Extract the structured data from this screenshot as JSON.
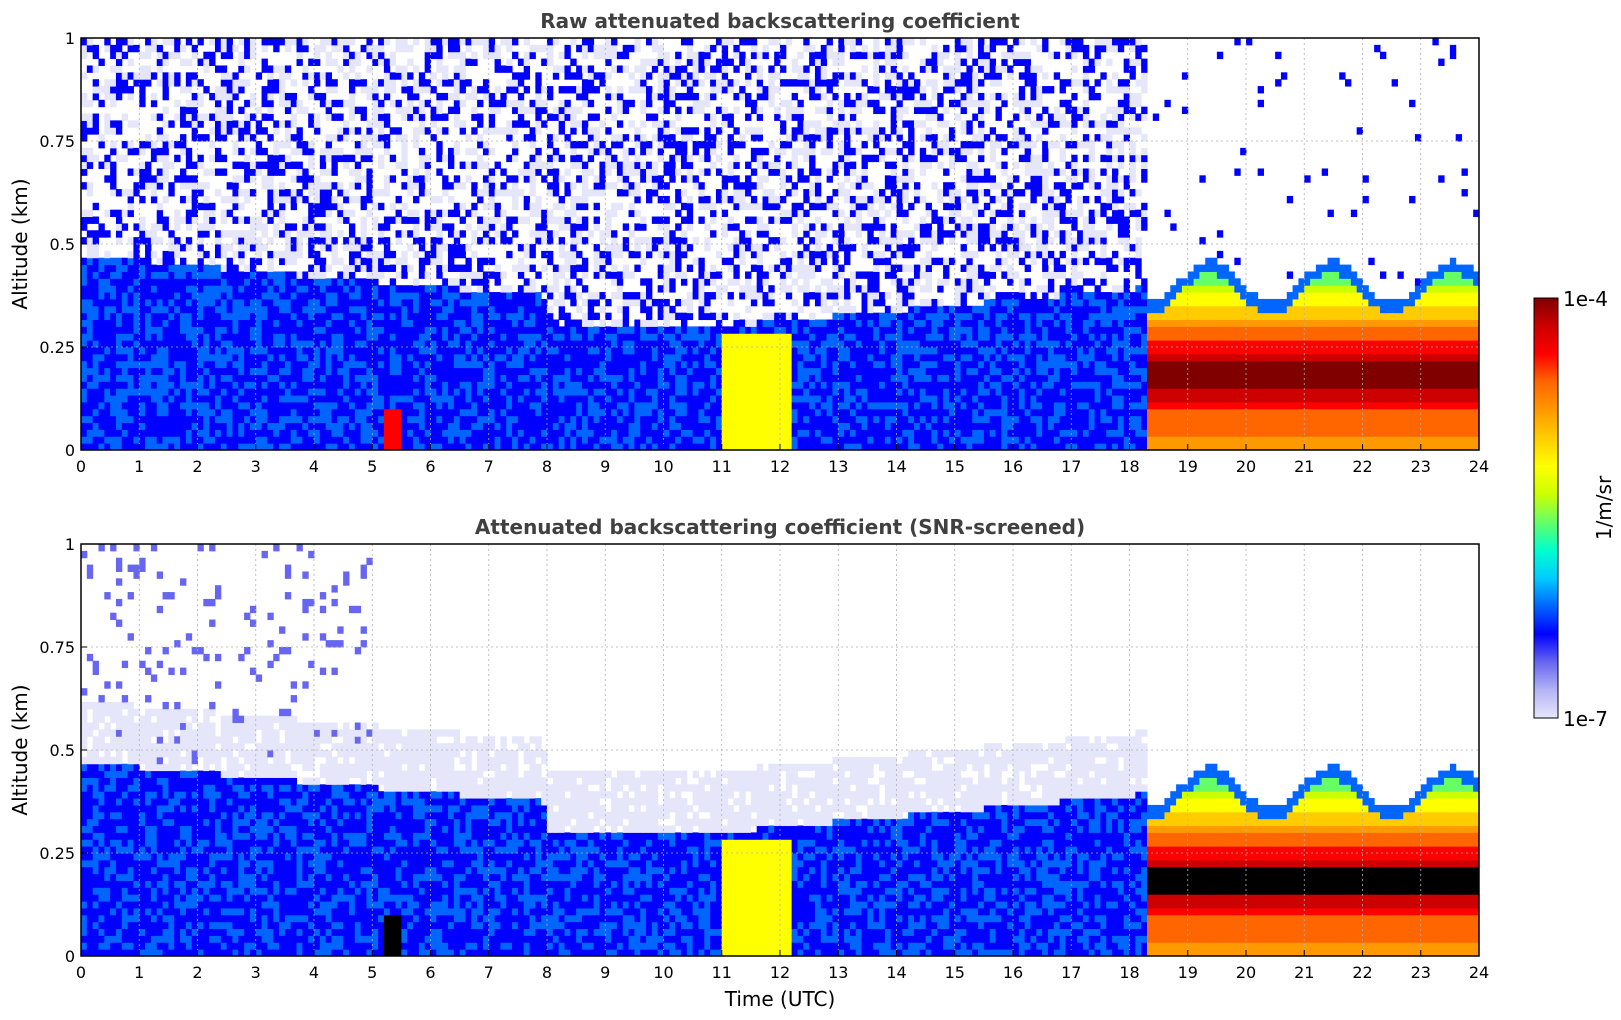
{
  "chart_data": [
    {
      "type": "heatmap",
      "title": "Raw attenuated backscattering coefficient",
      "xlabel": "",
      "ylabel": "Altitude (km)",
      "xlim": [
        0,
        24
      ],
      "ylim": [
        0,
        1
      ],
      "x_ticks": [
        0,
        1,
        2,
        3,
        4,
        5,
        6,
        7,
        8,
        9,
        10,
        11,
        12,
        13,
        14,
        15,
        16,
        17,
        18,
        19,
        20,
        21,
        22,
        23,
        24
      ],
      "y_ticks": [
        {
          "value": 0,
          "label": "0"
        },
        {
          "value": 0.25,
          "label": "0.25"
        },
        {
          "value": 0.5,
          "label": "0.5"
        },
        {
          "value": 0.75,
          "label": "0.75"
        },
        {
          "value": 1,
          "label": "1"
        }
      ],
      "grid": true,
      "variant": "raw"
    },
    {
      "type": "heatmap",
      "title": "Attenuated backscattering coefficient (SNR-screened)",
      "xlabel": "Time (UTC)",
      "ylabel": "Altitude (km)",
      "xlim": [
        0,
        24
      ],
      "ylim": [
        0,
        1
      ],
      "x_ticks": [
        0,
        1,
        2,
        3,
        4,
        5,
        6,
        7,
        8,
        9,
        10,
        11,
        12,
        13,
        14,
        15,
        16,
        17,
        18,
        19,
        20,
        21,
        22,
        23,
        24
      ],
      "y_ticks": [
        {
          "value": 0,
          "label": "0"
        },
        {
          "value": 0.25,
          "label": "0.25"
        },
        {
          "value": 0.5,
          "label": "0.5"
        },
        {
          "value": 0.75,
          "label": "0.75"
        },
        {
          "value": 1,
          "label": "1"
        }
      ],
      "grid": true,
      "variant": "screened"
    }
  ],
  "colorbar": {
    "label": "1/m/sr",
    "max_label": "1e-4",
    "min_label": "1e-7",
    "scale": "log",
    "range": [
      1e-07,
      0.0001
    ],
    "colormap": [
      "#e6e6fa",
      "#b3b3f5",
      "#6666f0",
      "#0000ff",
      "#0066ff",
      "#00ccff",
      "#00ffcc",
      "#66ff66",
      "#ccff00",
      "#ffff00",
      "#ffcc00",
      "#ff9900",
      "#ff6600",
      "#ff0000",
      "#cc0000",
      "#800000"
    ]
  }
}
